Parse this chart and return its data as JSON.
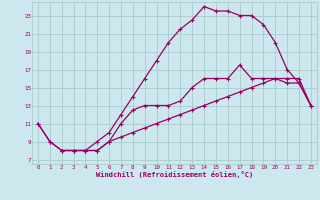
{
  "xlabel": "Windchill (Refroidissement éolien,°C)",
  "bg_color": "#cce8ee",
  "grid_color": "#aacccc",
  "line_color": "#990066",
  "xlim": [
    -0.5,
    23.5
  ],
  "ylim": [
    6.5,
    24.5
  ],
  "xticks": [
    0,
    1,
    2,
    3,
    4,
    5,
    6,
    7,
    8,
    9,
    10,
    11,
    12,
    13,
    14,
    15,
    16,
    17,
    18,
    19,
    20,
    21,
    22,
    23
  ],
  "yticks": [
    7,
    9,
    11,
    13,
    15,
    17,
    19,
    21,
    23
  ],
  "line1_x": [
    0,
    1,
    2,
    3,
    4,
    5,
    6,
    7,
    8,
    9,
    10,
    11,
    12,
    13,
    14,
    15,
    16,
    17,
    18,
    19,
    20,
    21,
    22,
    23
  ],
  "line1_y": [
    11,
    9,
    8,
    8,
    8,
    9,
    10,
    12,
    14,
    16,
    18,
    20,
    21.5,
    22.5,
    24,
    23.5,
    23.5,
    23,
    23,
    22,
    20,
    17,
    15.5,
    13
  ],
  "line2_x": [
    0,
    1,
    2,
    3,
    4,
    5,
    6,
    7,
    8,
    9,
    10,
    11,
    12,
    13,
    14,
    15,
    16,
    17,
    18,
    19,
    20,
    21,
    22,
    23
  ],
  "line2_y": [
    11,
    9,
    8,
    8,
    8,
    8,
    9,
    9.5,
    10,
    10.5,
    11,
    11.5,
    12,
    12.5,
    13,
    13.5,
    14,
    14.5,
    15,
    15.5,
    16,
    16,
    16,
    13
  ],
  "line3_x": [
    2,
    3,
    4,
    5,
    6,
    7,
    8,
    9,
    10,
    11,
    12,
    13,
    14,
    15,
    16,
    17,
    18,
    19,
    20,
    21,
    22,
    23
  ],
  "line3_y": [
    8,
    8,
    8,
    8,
    9,
    11,
    12.5,
    13,
    13,
    13,
    13.5,
    15,
    16,
    16,
    16,
    17.5,
    16,
    16,
    16,
    15.5,
    15.5,
    13
  ]
}
